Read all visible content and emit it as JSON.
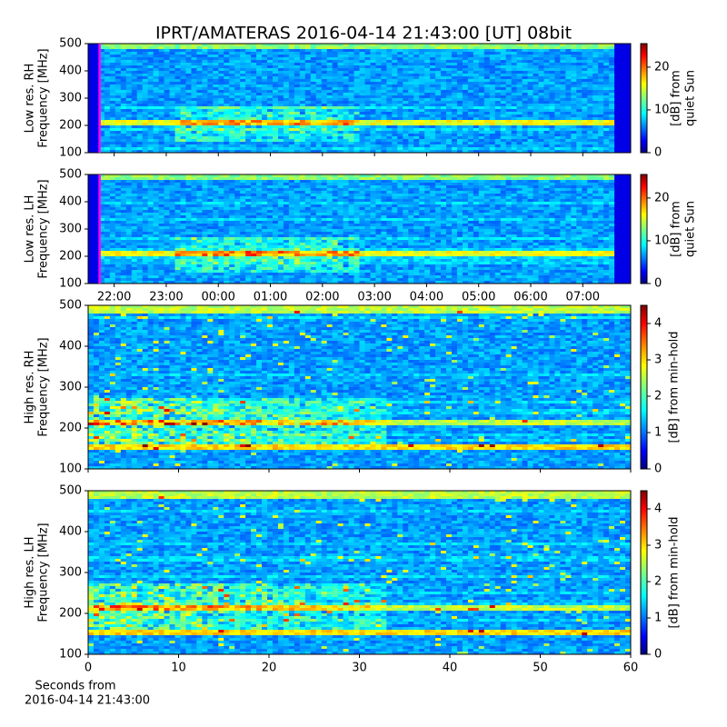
{
  "chart_data": [
    {
      "type": "heatmap",
      "title": "IPRT/AMATERAS 2016-04-14 21:43:00 [UT]   08bit",
      "ylabel": [
        "Low res. RH",
        "Frequency [MHz]"
      ],
      "ylim": [
        100,
        500
      ],
      "yticks": [
        100,
        200,
        300,
        400,
        500
      ],
      "xlim": [
        21.5,
        31.92
      ],
      "clim": [
        0,
        25.5
      ],
      "cticks": [
        0,
        10,
        20
      ],
      "clabel": [
        "[dB] from",
        "quiet Sun"
      ],
      "colormap": "jet",
      "marker_x": 21.72,
      "marker_color": "#ff00ff"
    },
    {
      "type": "heatmap",
      "ylabel": [
        "Low res. LH",
        "Frequency [MHz]"
      ],
      "ylim": [
        100,
        500
      ],
      "yticks": [
        100,
        200,
        300,
        400,
        500
      ],
      "xlim": [
        21.5,
        31.92
      ],
      "xticks": [
        {
          "value": 22,
          "label": "22:00"
        },
        {
          "value": 23,
          "label": "23:00"
        },
        {
          "value": 24,
          "label": "00:00"
        },
        {
          "value": 25,
          "label": "01:00"
        },
        {
          "value": 26,
          "label": "02:00"
        },
        {
          "value": 27,
          "label": "03:00"
        },
        {
          "value": 28,
          "label": "04:00"
        },
        {
          "value": 29,
          "label": "05:00"
        },
        {
          "value": 30,
          "label": "06:00"
        },
        {
          "value": 31,
          "label": "07:00"
        }
      ],
      "clim": [
        0,
        25.5
      ],
      "cticks": [
        0,
        10,
        20
      ],
      "clabel": [
        "[dB] from",
        "quiet Sun"
      ],
      "colormap": "jet",
      "marker_x": 21.72,
      "marker_color": "#ff00ff"
    },
    {
      "type": "heatmap",
      "ylabel": [
        "High res. RH",
        "Frequency [MHz]"
      ],
      "ylim": [
        100,
        500
      ],
      "yticks": [
        100,
        200,
        300,
        400,
        500
      ],
      "xlim": [
        0,
        60
      ],
      "clim": [
        0,
        4.5
      ],
      "cticks": [
        0,
        1,
        2,
        3,
        4
      ],
      "clabel": [
        "[dB] from min-hold"
      ],
      "colormap": "jet"
    },
    {
      "type": "heatmap",
      "ylabel": [
        "High res. LH",
        "Frequency [MHz]"
      ],
      "ylim": [
        100,
        500
      ],
      "yticks": [
        100,
        200,
        300,
        400,
        500
      ],
      "xlim": [
        0,
        60
      ],
      "xticks": [
        0,
        10,
        20,
        30,
        40,
        50,
        60
      ],
      "clim": [
        0,
        4.5
      ],
      "cticks": [
        0,
        1,
        2,
        3,
        4
      ],
      "clabel": [
        "[dB] from min-hold"
      ],
      "xlabel": [
        "Seconds from",
        "2016-04-14 21:43:00"
      ],
      "colormap": "jet"
    }
  ]
}
